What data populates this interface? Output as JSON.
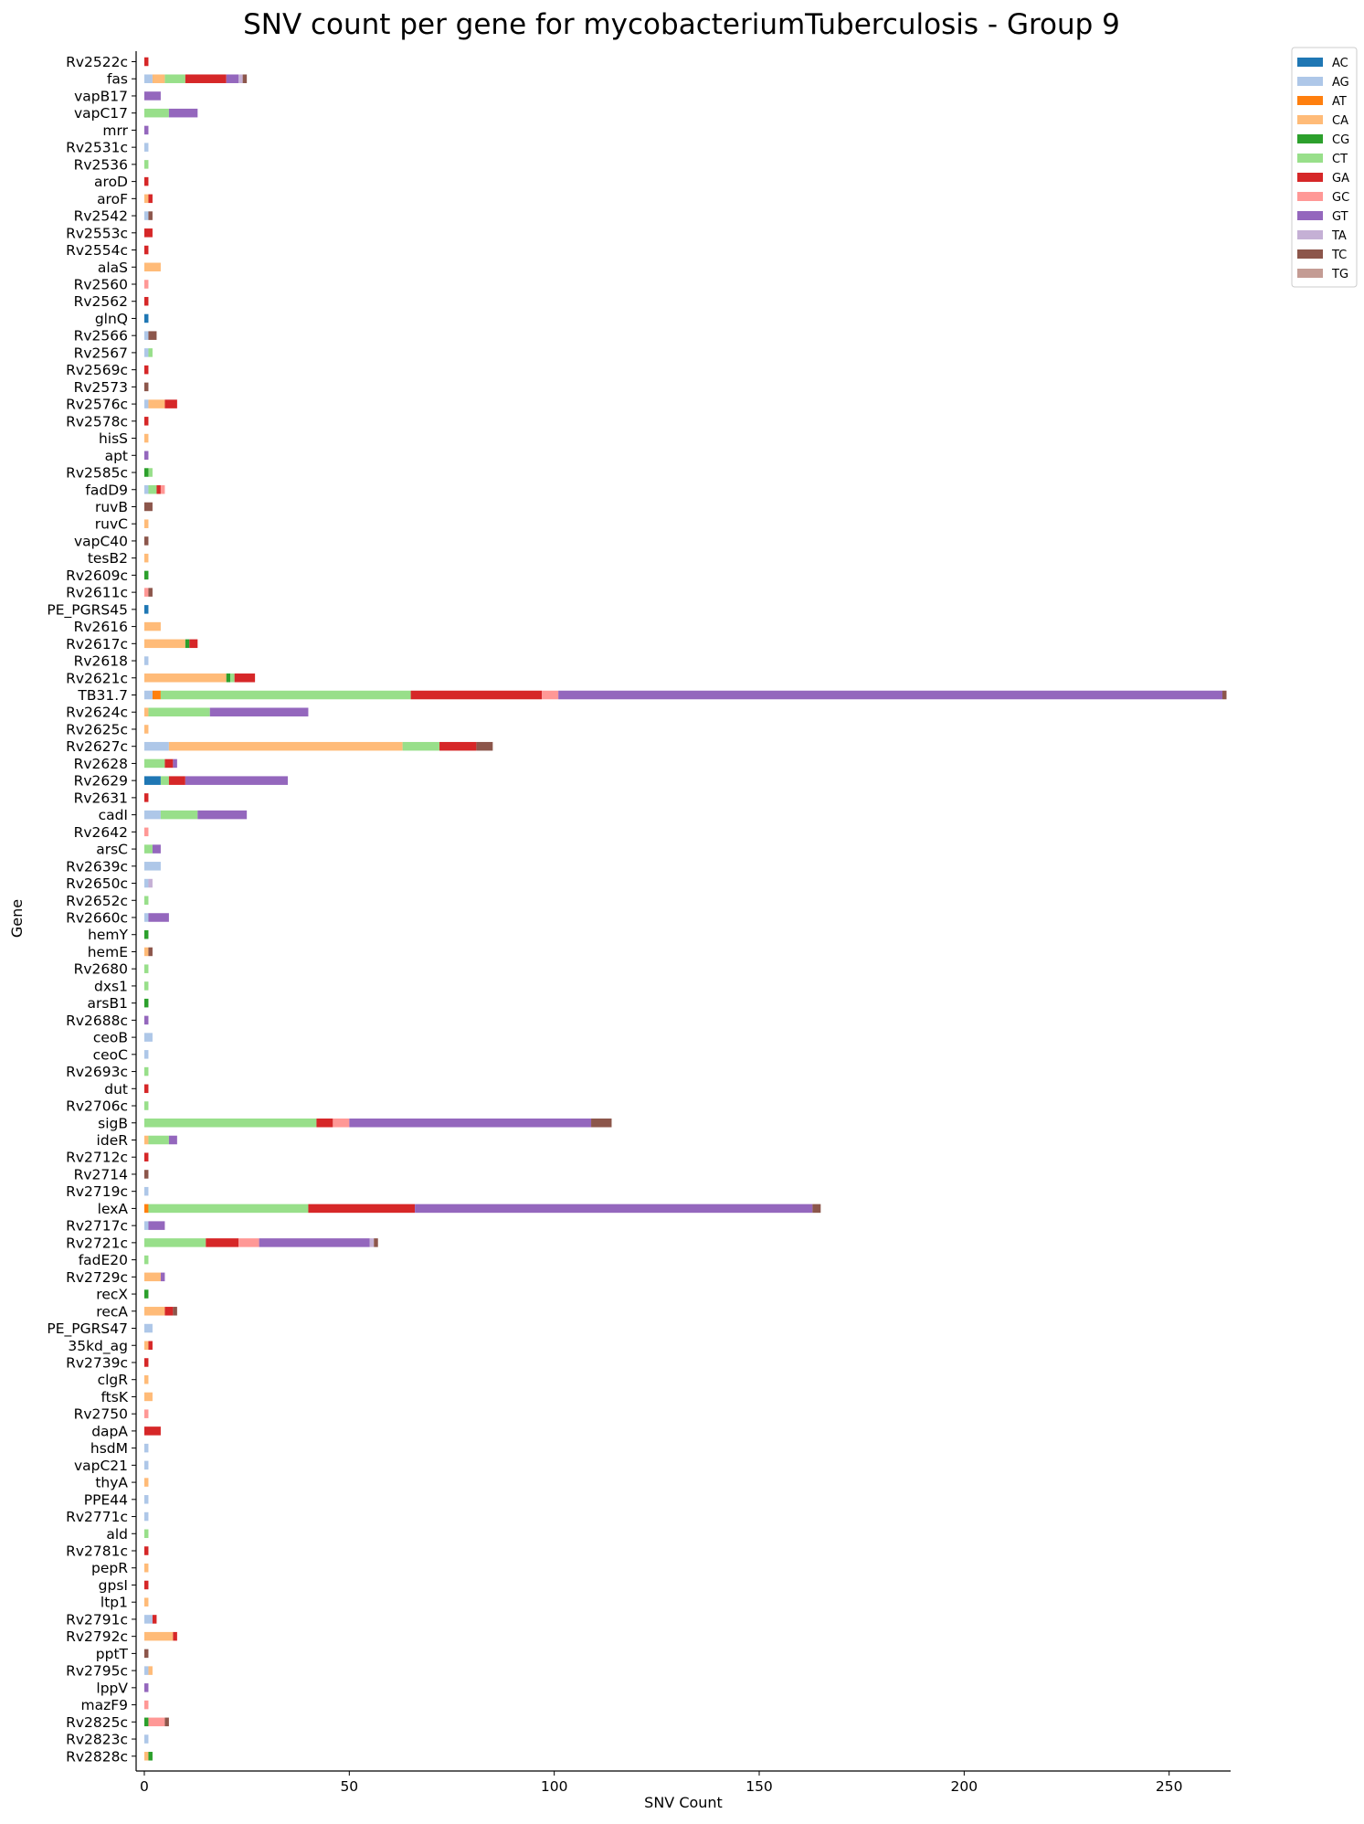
{
  "chart_data": {
    "type": "bar",
    "orientation": "horizontal",
    "stacked": true,
    "title": "SNV count per gene for mycobacteriumTuberculosis - Group 9",
    "xlabel": "SNV Count",
    "ylabel": "Gene",
    "xlim": [
      -2,
      265
    ],
    "xticks": [
      0,
      50,
      100,
      150,
      200,
      250
    ],
    "grid": false,
    "legend_position": "top-right, outside plot",
    "series": [
      {
        "name": "AC",
        "color": "#1f77b4"
      },
      {
        "name": "AG",
        "color": "#aec7e8"
      },
      {
        "name": "AT",
        "color": "#ff7f0e"
      },
      {
        "name": "CA",
        "color": "#ffbb78"
      },
      {
        "name": "CG",
        "color": "#2ca02c"
      },
      {
        "name": "CT",
        "color": "#98df8a"
      },
      {
        "name": "GA",
        "color": "#d62728"
      },
      {
        "name": "GC",
        "color": "#ff9896"
      },
      {
        "name": "GT",
        "color": "#9467bd"
      },
      {
        "name": "TA",
        "color": "#c5b0d5"
      },
      {
        "name": "TC",
        "color": "#8c564b"
      },
      {
        "name": "TG",
        "color": "#c49c94"
      }
    ],
    "genes": [
      {
        "gene": "Rv2522c",
        "counts": {
          "GA": 1
        }
      },
      {
        "gene": "fas",
        "counts": {
          "AG": 2,
          "CA": 3,
          "CT": 5,
          "GA": 10,
          "GT": 3,
          "TA": 1,
          "TC": 1
        }
      },
      {
        "gene": "vapB17",
        "counts": {
          "GT": 4
        }
      },
      {
        "gene": "vapC17",
        "counts": {
          "CT": 6,
          "GT": 7
        }
      },
      {
        "gene": "mrr",
        "counts": {
          "GT": 1
        }
      },
      {
        "gene": "Rv2531c",
        "counts": {
          "AG": 1
        }
      },
      {
        "gene": "Rv2536",
        "counts": {
          "CT": 1
        }
      },
      {
        "gene": "aroD",
        "counts": {
          "GA": 1
        }
      },
      {
        "gene": "aroF",
        "counts": {
          "CA": 1,
          "GA": 1
        }
      },
      {
        "gene": "Rv2542",
        "counts": {
          "AG": 1,
          "TC": 1
        }
      },
      {
        "gene": "Rv2553c",
        "counts": {
          "GA": 2
        }
      },
      {
        "gene": "Rv2554c",
        "counts": {
          "GA": 1
        }
      },
      {
        "gene": "alaS",
        "counts": {
          "CA": 4
        }
      },
      {
        "gene": "Rv2560",
        "counts": {
          "GC": 1
        }
      },
      {
        "gene": "Rv2562",
        "counts": {
          "GA": 1
        }
      },
      {
        "gene": "glnQ",
        "counts": {
          "AC": 1
        }
      },
      {
        "gene": "Rv2566",
        "counts": {
          "AG": 1,
          "TC": 2
        }
      },
      {
        "gene": "Rv2567",
        "counts": {
          "AG": 1,
          "CT": 1
        }
      },
      {
        "gene": "Rv2569c",
        "counts": {
          "GA": 1
        }
      },
      {
        "gene": "Rv2573",
        "counts": {
          "TC": 1
        }
      },
      {
        "gene": "Rv2576c",
        "counts": {
          "AG": 1,
          "CA": 4,
          "GA": 3
        }
      },
      {
        "gene": "Rv2578c",
        "counts": {
          "GA": 1
        }
      },
      {
        "gene": "hisS",
        "counts": {
          "CA": 1
        }
      },
      {
        "gene": "apt",
        "counts": {
          "GT": 1
        }
      },
      {
        "gene": "Rv2585c",
        "counts": {
          "CG": 1,
          "CT": 1
        }
      },
      {
        "gene": "fadD9",
        "counts": {
          "AG": 1,
          "CT": 2,
          "GA": 1,
          "GC": 1
        }
      },
      {
        "gene": "ruvB",
        "counts": {
          "TC": 2
        }
      },
      {
        "gene": "ruvC",
        "counts": {
          "CA": 1
        }
      },
      {
        "gene": "vapC40",
        "counts": {
          "TC": 1
        }
      },
      {
        "gene": "tesB2",
        "counts": {
          "CA": 1
        }
      },
      {
        "gene": "Rv2609c",
        "counts": {
          "CG": 1
        }
      },
      {
        "gene": "Rv2611c",
        "counts": {
          "GC": 1,
          "TC": 1
        }
      },
      {
        "gene": "PE_PGRS45",
        "counts": {
          "AC": 1
        }
      },
      {
        "gene": "Rv2616",
        "counts": {
          "CA": 4
        }
      },
      {
        "gene": "Rv2617c",
        "counts": {
          "CA": 10,
          "CG": 1,
          "GA": 2
        }
      },
      {
        "gene": "Rv2618",
        "counts": {
          "AG": 1
        }
      },
      {
        "gene": "Rv2621c",
        "counts": {
          "CA": 20,
          "CG": 1,
          "CT": 1,
          "GA": 5
        }
      },
      {
        "gene": "TB31.7",
        "counts": {
          "AG": 2,
          "AT": 2,
          "CT": 61,
          "GA": 32,
          "GC": 4,
          "GT": 162,
          "TC": 1
        }
      },
      {
        "gene": "Rv2624c",
        "counts": {
          "CA": 1,
          "CT": 15,
          "GT": 24
        }
      },
      {
        "gene": "Rv2625c",
        "counts": {
          "CA": 1
        }
      },
      {
        "gene": "Rv2627c",
        "counts": {
          "AG": 6,
          "CA": 57,
          "CT": 9,
          "GA": 9,
          "TC": 4
        }
      },
      {
        "gene": "Rv2628",
        "counts": {
          "CT": 5,
          "GA": 2,
          "GT": 1
        }
      },
      {
        "gene": "Rv2629",
        "counts": {
          "AC": 4,
          "CT": 2,
          "GA": 4,
          "GT": 25
        }
      },
      {
        "gene": "Rv2631",
        "counts": {
          "GA": 1
        }
      },
      {
        "gene": "cadI",
        "counts": {
          "AG": 4,
          "CT": 9,
          "GT": 12
        }
      },
      {
        "gene": "Rv2642",
        "counts": {
          "GC": 1
        }
      },
      {
        "gene": "arsC",
        "counts": {
          "CT": 2,
          "GT": 2
        }
      },
      {
        "gene": "Rv2639c",
        "counts": {
          "AG": 4
        }
      },
      {
        "gene": "Rv2650c",
        "counts": {
          "AG": 1,
          "TA": 1
        }
      },
      {
        "gene": "Rv2652c",
        "counts": {
          "CT": 1
        }
      },
      {
        "gene": "Rv2660c",
        "counts": {
          "AG": 1,
          "GT": 5
        }
      },
      {
        "gene": "hemY",
        "counts": {
          "CG": 1
        }
      },
      {
        "gene": "hemE",
        "counts": {
          "CA": 1,
          "TC": 1
        }
      },
      {
        "gene": "Rv2680",
        "counts": {
          "CT": 1
        }
      },
      {
        "gene": "dxs1",
        "counts": {
          "CT": 1
        }
      },
      {
        "gene": "arsB1",
        "counts": {
          "CG": 1
        }
      },
      {
        "gene": "Rv2688c",
        "counts": {
          "GT": 1
        }
      },
      {
        "gene": "ceoB",
        "counts": {
          "AG": 2
        }
      },
      {
        "gene": "ceoC",
        "counts": {
          "AG": 1
        }
      },
      {
        "gene": "Rv2693c",
        "counts": {
          "CT": 1
        }
      },
      {
        "gene": "dut",
        "counts": {
          "GA": 1
        }
      },
      {
        "gene": "Rv2706c",
        "counts": {
          "CT": 1
        }
      },
      {
        "gene": "sigB",
        "counts": {
          "CT": 42,
          "GA": 4,
          "GC": 4,
          "GT": 59,
          "TC": 5
        }
      },
      {
        "gene": "ideR",
        "counts": {
          "CA": 1,
          "CT": 5,
          "GT": 2
        }
      },
      {
        "gene": "Rv2712c",
        "counts": {
          "GA": 1
        }
      },
      {
        "gene": "Rv2714",
        "counts": {
          "TC": 1
        }
      },
      {
        "gene": "Rv2719c",
        "counts": {
          "AG": 1
        }
      },
      {
        "gene": "lexA",
        "counts": {
          "AT": 1,
          "CT": 39,
          "GA": 26,
          "GT": 97,
          "TC": 2
        }
      },
      {
        "gene": "Rv2717c",
        "counts": {
          "AG": 1,
          "GT": 4
        }
      },
      {
        "gene": "Rv2721c",
        "counts": {
          "CT": 15,
          "GA": 8,
          "GC": 5,
          "GT": 27,
          "TA": 1,
          "TC": 1
        }
      },
      {
        "gene": "fadE20",
        "counts": {
          "CT": 1
        }
      },
      {
        "gene": "Rv2729c",
        "counts": {
          "CA": 4,
          "GT": 1
        }
      },
      {
        "gene": "recX",
        "counts": {
          "CG": 1
        }
      },
      {
        "gene": "recA",
        "counts": {
          "CA": 5,
          "GA": 2,
          "TC": 1
        }
      },
      {
        "gene": "PE_PGRS47",
        "counts": {
          "AG": 2
        }
      },
      {
        "gene": "35kd_ag",
        "counts": {
          "CA": 1,
          "GA": 1
        }
      },
      {
        "gene": "Rv2739c",
        "counts": {
          "GA": 1
        }
      },
      {
        "gene": "clgR",
        "counts": {
          "CA": 1
        }
      },
      {
        "gene": "ftsK",
        "counts": {
          "CA": 2
        }
      },
      {
        "gene": "Rv2750",
        "counts": {
          "GC": 1
        }
      },
      {
        "gene": "dapA",
        "counts": {
          "GA": 4
        }
      },
      {
        "gene": "hsdM",
        "counts": {
          "AG": 1
        }
      },
      {
        "gene": "vapC21",
        "counts": {
          "AG": 1
        }
      },
      {
        "gene": "thyA",
        "counts": {
          "CA": 1
        }
      },
      {
        "gene": "PPE44",
        "counts": {
          "AG": 1
        }
      },
      {
        "gene": "Rv2771c",
        "counts": {
          "AG": 1
        }
      },
      {
        "gene": "ald",
        "counts": {
          "CT": 1
        }
      },
      {
        "gene": "Rv2781c",
        "counts": {
          "GA": 1
        }
      },
      {
        "gene": "pepR",
        "counts": {
          "CA": 1
        }
      },
      {
        "gene": "gpsI",
        "counts": {
          "GA": 1
        }
      },
      {
        "gene": "ltp1",
        "counts": {
          "CA": 1
        }
      },
      {
        "gene": "Rv2791c",
        "counts": {
          "AG": 2,
          "GA": 1
        }
      },
      {
        "gene": "Rv2792c",
        "counts": {
          "CA": 7,
          "GA": 1
        }
      },
      {
        "gene": "pptT",
        "counts": {
          "TC": 1
        }
      },
      {
        "gene": "Rv2795c",
        "counts": {
          "AG": 1,
          "CA": 1
        }
      },
      {
        "gene": "lppV",
        "counts": {
          "GT": 1
        }
      },
      {
        "gene": "mazF9",
        "counts": {
          "GC": 1
        }
      },
      {
        "gene": "Rv2825c",
        "counts": {
          "CG": 1,
          "GC": 4,
          "TC": 1
        }
      },
      {
        "gene": "Rv2823c",
        "counts": {
          "AG": 1
        }
      },
      {
        "gene": "Rv2828c",
        "counts": {
          "CG": 1,
          "CA": 1
        }
      }
    ]
  }
}
